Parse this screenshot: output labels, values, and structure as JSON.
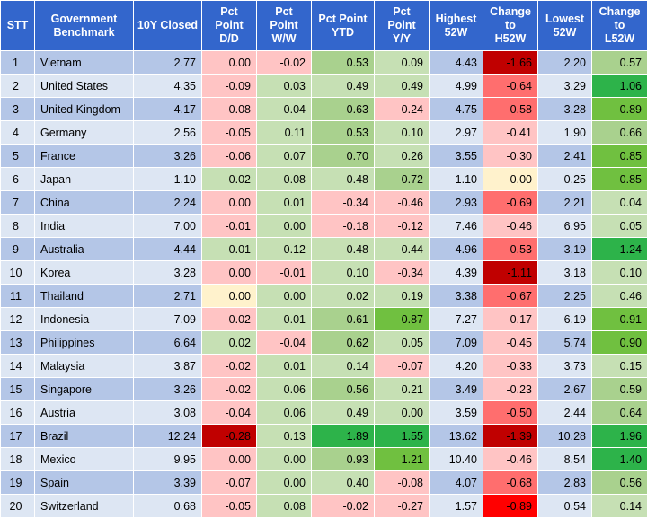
{
  "columns": [
    {
      "key": "stt",
      "label": "STT"
    },
    {
      "key": "gov",
      "label": "Government\nBenchmark"
    },
    {
      "key": "closed",
      "label": "10Y Closed"
    },
    {
      "key": "dd",
      "label": "Pct\nPoint\nD/D"
    },
    {
      "key": "ww",
      "label": "Pct\nPoint\nW/W"
    },
    {
      "key": "ytd",
      "label": "Pct Point\nYTD"
    },
    {
      "key": "yy",
      "label": "Pct\nPoint\nY/Y"
    },
    {
      "key": "h52",
      "label": "Highest\n52W"
    },
    {
      "key": "ch52",
      "label": "Change\nto\nH52W"
    },
    {
      "key": "l52",
      "label": "Lowest\n52W"
    },
    {
      "key": "cl52",
      "label": "Change\nto\nL52W"
    }
  ],
  "colors": {
    "header_bg": "#3366cc",
    "row_odd_bg": "#b4c6e7",
    "row_even_bg": "#dde6f3",
    "neg_light": "#ffc4c4",
    "neg_mid": "#ff6e6e",
    "neg_dark": "#c00000",
    "pos_light": "#c6e0b4",
    "pos_mid": "#a9d18e",
    "pos_strong": "#70c040",
    "pos_dark": "#2db34a",
    "zero": "#fff2cc"
  },
  "rows": [
    {
      "stt": "1",
      "gov": "Vietnam",
      "closed": "2.77",
      "dd": "0.00",
      "ww": "-0.02",
      "ytd": "0.53",
      "yy": "0.09",
      "h52": "4.43",
      "ch52": "-1.66",
      "l52": "2.20",
      "cl52": "0.57"
    },
    {
      "stt": "2",
      "gov": "United States",
      "closed": "4.35",
      "dd": "-0.09",
      "ww": "0.03",
      "ytd": "0.49",
      "yy": "0.49",
      "h52": "4.99",
      "ch52": "-0.64",
      "l52": "3.29",
      "cl52": "1.06"
    },
    {
      "stt": "3",
      "gov": "United Kingdom",
      "closed": "4.17",
      "dd": "-0.08",
      "ww": "0.04",
      "ytd": "0.63",
      "yy": "-0.24",
      "h52": "4.75",
      "ch52": "-0.58",
      "l52": "3.28",
      "cl52": "0.89"
    },
    {
      "stt": "4",
      "gov": "Germany",
      "closed": "2.56",
      "dd": "-0.05",
      "ww": "0.11",
      "ytd": "0.53",
      "yy": "0.10",
      "h52": "2.97",
      "ch52": "-0.41",
      "l52": "1.90",
      "cl52": "0.66"
    },
    {
      "stt": "5",
      "gov": "France",
      "closed": "3.26",
      "dd": "-0.06",
      "ww": "0.07",
      "ytd": "0.70",
      "yy": "0.26",
      "h52": "3.55",
      "ch52": "-0.30",
      "l52": "2.41",
      "cl52": "0.85"
    },
    {
      "stt": "6",
      "gov": "Japan",
      "closed": "1.10",
      "dd": "0.02",
      "ww": "0.08",
      "ytd": "0.48",
      "yy": "0.72",
      "h52": "1.10",
      "ch52": "0.00",
      "l52": "0.25",
      "cl52": "0.85"
    },
    {
      "stt": "7",
      "gov": "China",
      "closed": "2.24",
      "dd": "0.00",
      "ww": "0.01",
      "ytd": "-0.34",
      "yy": "-0.46",
      "h52": "2.93",
      "ch52": "-0.69",
      "l52": "2.21",
      "cl52": "0.04"
    },
    {
      "stt": "8",
      "gov": "India",
      "closed": "7.00",
      "dd": "-0.01",
      "ww": "0.00",
      "ytd": "-0.18",
      "yy": "-0.12",
      "h52": "7.46",
      "ch52": "-0.46",
      "l52": "6.95",
      "cl52": "0.05"
    },
    {
      "stt": "9",
      "gov": "Australia",
      "closed": "4.44",
      "dd": "0.01",
      "ww": "0.12",
      "ytd": "0.48",
      "yy": "0.44",
      "h52": "4.96",
      "ch52": "-0.53",
      "l52": "3.19",
      "cl52": "1.24"
    },
    {
      "stt": "10",
      "gov": "Korea",
      "closed": "3.28",
      "dd": "0.00",
      "ww": "-0.01",
      "ytd": "0.10",
      "yy": "-0.34",
      "h52": "4.39",
      "ch52": "-1.11",
      "l52": "3.18",
      "cl52": "0.10"
    },
    {
      "stt": "11",
      "gov": "Thailand",
      "closed": "2.71",
      "dd": "0.00",
      "ww": "0.00",
      "ytd": "0.02",
      "yy": "0.19",
      "h52": "3.38",
      "ch52": "-0.67",
      "l52": "2.25",
      "cl52": "0.46"
    },
    {
      "stt": "12",
      "gov": "Indonesia",
      "closed": "7.09",
      "dd": "-0.02",
      "ww": "0.01",
      "ytd": "0.61",
      "yy": "0.87",
      "h52": "7.27",
      "ch52": "-0.17",
      "l52": "6.19",
      "cl52": "0.91"
    },
    {
      "stt": "13",
      "gov": "Philippines",
      "closed": "6.64",
      "dd": "0.02",
      "ww": "-0.04",
      "ytd": "0.62",
      "yy": "0.05",
      "h52": "7.09",
      "ch52": "-0.45",
      "l52": "5.74",
      "cl52": "0.90"
    },
    {
      "stt": "14",
      "gov": "Malaysia",
      "closed": "3.87",
      "dd": "-0.02",
      "ww": "0.01",
      "ytd": "0.14",
      "yy": "-0.07",
      "h52": "4.20",
      "ch52": "-0.33",
      "l52": "3.73",
      "cl52": "0.15"
    },
    {
      "stt": "15",
      "gov": "Singapore",
      "closed": "3.26",
      "dd": "-0.02",
      "ww": "0.06",
      "ytd": "0.56",
      "yy": "0.21",
      "h52": "3.49",
      "ch52": "-0.23",
      "l52": "2.67",
      "cl52": "0.59"
    },
    {
      "stt": "16",
      "gov": "Austria",
      "closed": "3.08",
      "dd": "-0.04",
      "ww": "0.06",
      "ytd": "0.49",
      "yy": "0.00",
      "h52": "3.59",
      "ch52": "-0.50",
      "l52": "2.44",
      "cl52": "0.64"
    },
    {
      "stt": "17",
      "gov": "Brazil",
      "closed": "12.24",
      "dd": "-0.28",
      "ww": "0.13",
      "ytd": "1.89",
      "yy": "1.55",
      "h52": "13.62",
      "ch52": "-1.39",
      "l52": "10.28",
      "cl52": "1.96"
    },
    {
      "stt": "18",
      "gov": "Mexico",
      "closed": "9.95",
      "dd": "0.00",
      "ww": "0.00",
      "ytd": "0.93",
      "yy": "1.21",
      "h52": "10.40",
      "ch52": "-0.46",
      "l52": "8.54",
      "cl52": "1.40"
    },
    {
      "stt": "19",
      "gov": "Spain",
      "closed": "3.39",
      "dd": "-0.07",
      "ww": "0.00",
      "ytd": "0.40",
      "yy": "-0.08",
      "h52": "4.07",
      "ch52": "-0.68",
      "l52": "2.83",
      "cl52": "0.56"
    },
    {
      "stt": "20",
      "gov": "Switzerland",
      "closed": "0.68",
      "dd": "-0.05",
      "ww": "0.08",
      "ytd": "-0.02",
      "yy": "-0.27",
      "h52": "1.57",
      "ch52": "-0.89",
      "l52": "0.54",
      "cl52": "0.14"
    }
  ],
  "cell_colors": [
    {
      "dd": "#ffc4c4",
      "ww": "#ffc4c4",
      "ytd": "#a9d18e",
      "yy": "#c6e0b4",
      "ch52": "#c00000",
      "cl52": "#a9d18e"
    },
    {
      "dd": "#ffc4c4",
      "ww": "#c6e0b4",
      "ytd": "#c6e0b4",
      "yy": "#c6e0b4",
      "ch52": "#ff6e6e",
      "cl52": "#2db34a"
    },
    {
      "dd": "#ffc4c4",
      "ww": "#c6e0b4",
      "ytd": "#a9d18e",
      "yy": "#ffc4c4",
      "ch52": "#ff6e6e",
      "cl52": "#70c040"
    },
    {
      "dd": "#ffc4c4",
      "ww": "#c6e0b4",
      "ytd": "#a9d18e",
      "yy": "#c6e0b4",
      "ch52": "#ffc4c4",
      "cl52": "#a9d18e"
    },
    {
      "dd": "#ffc4c4",
      "ww": "#c6e0b4",
      "ytd": "#a9d18e",
      "yy": "#c6e0b4",
      "ch52": "#ffc4c4",
      "cl52": "#70c040"
    },
    {
      "dd": "#c6e0b4",
      "ww": "#c6e0b4",
      "ytd": "#c6e0b4",
      "yy": "#a9d18e",
      "ch52": "#fff2cc",
      "cl52": "#70c040"
    },
    {
      "dd": "#ffc4c4",
      "ww": "#c6e0b4",
      "ytd": "#ffc4c4",
      "yy": "#ffc4c4",
      "ch52": "#ff6e6e",
      "cl52": "#c6e0b4"
    },
    {
      "dd": "#ffc4c4",
      "ww": "#c6e0b4",
      "ytd": "#ffc4c4",
      "yy": "#ffc4c4",
      "ch52": "#ffc4c4",
      "cl52": "#c6e0b4"
    },
    {
      "dd": "#c6e0b4",
      "ww": "#c6e0b4",
      "ytd": "#c6e0b4",
      "yy": "#c6e0b4",
      "ch52": "#ff6e6e",
      "cl52": "#2db34a"
    },
    {
      "dd": "#ffc4c4",
      "ww": "#ffc4c4",
      "ytd": "#c6e0b4",
      "yy": "#ffc4c4",
      "ch52": "#c00000",
      "cl52": "#c6e0b4"
    },
    {
      "dd": "#fff2cc",
      "ww": "#c6e0b4",
      "ytd": "#c6e0b4",
      "yy": "#c6e0b4",
      "ch52": "#ff6e6e",
      "cl52": "#c6e0b4"
    },
    {
      "dd": "#ffc4c4",
      "ww": "#c6e0b4",
      "ytd": "#a9d18e",
      "yy": "#70c040",
      "ch52": "#ffc4c4",
      "cl52": "#70c040"
    },
    {
      "dd": "#c6e0b4",
      "ww": "#ffc4c4",
      "ytd": "#a9d18e",
      "yy": "#c6e0b4",
      "ch52": "#ffc4c4",
      "cl52": "#70c040"
    },
    {
      "dd": "#ffc4c4",
      "ww": "#c6e0b4",
      "ytd": "#c6e0b4",
      "yy": "#ffc4c4",
      "ch52": "#ffc4c4",
      "cl52": "#c6e0b4"
    },
    {
      "dd": "#ffc4c4",
      "ww": "#c6e0b4",
      "ytd": "#a9d18e",
      "yy": "#c6e0b4",
      "ch52": "#ffc4c4",
      "cl52": "#a9d18e"
    },
    {
      "dd": "#ffc4c4",
      "ww": "#c6e0b4",
      "ytd": "#c6e0b4",
      "yy": "#c6e0b4",
      "ch52": "#ff6e6e",
      "cl52": "#a9d18e"
    },
    {
      "dd": "#c00000",
      "ww": "#c6e0b4",
      "ytd": "#2db34a",
      "yy": "#2db34a",
      "ch52": "#c00000",
      "cl52": "#2db34a"
    },
    {
      "dd": "#ffc4c4",
      "ww": "#c6e0b4",
      "ytd": "#a9d18e",
      "yy": "#70c040",
      "ch52": "#ffc4c4",
      "cl52": "#2db34a"
    },
    {
      "dd": "#ffc4c4",
      "ww": "#c6e0b4",
      "ytd": "#c6e0b4",
      "yy": "#ffc4c4",
      "ch52": "#ff6e6e",
      "cl52": "#a9d18e"
    },
    {
      "dd": "#ffc4c4",
      "ww": "#c6e0b4",
      "ytd": "#ffc4c4",
      "yy": "#ffc4c4",
      "ch52": "#ff0000",
      "cl52": "#c6e0b4"
    }
  ]
}
